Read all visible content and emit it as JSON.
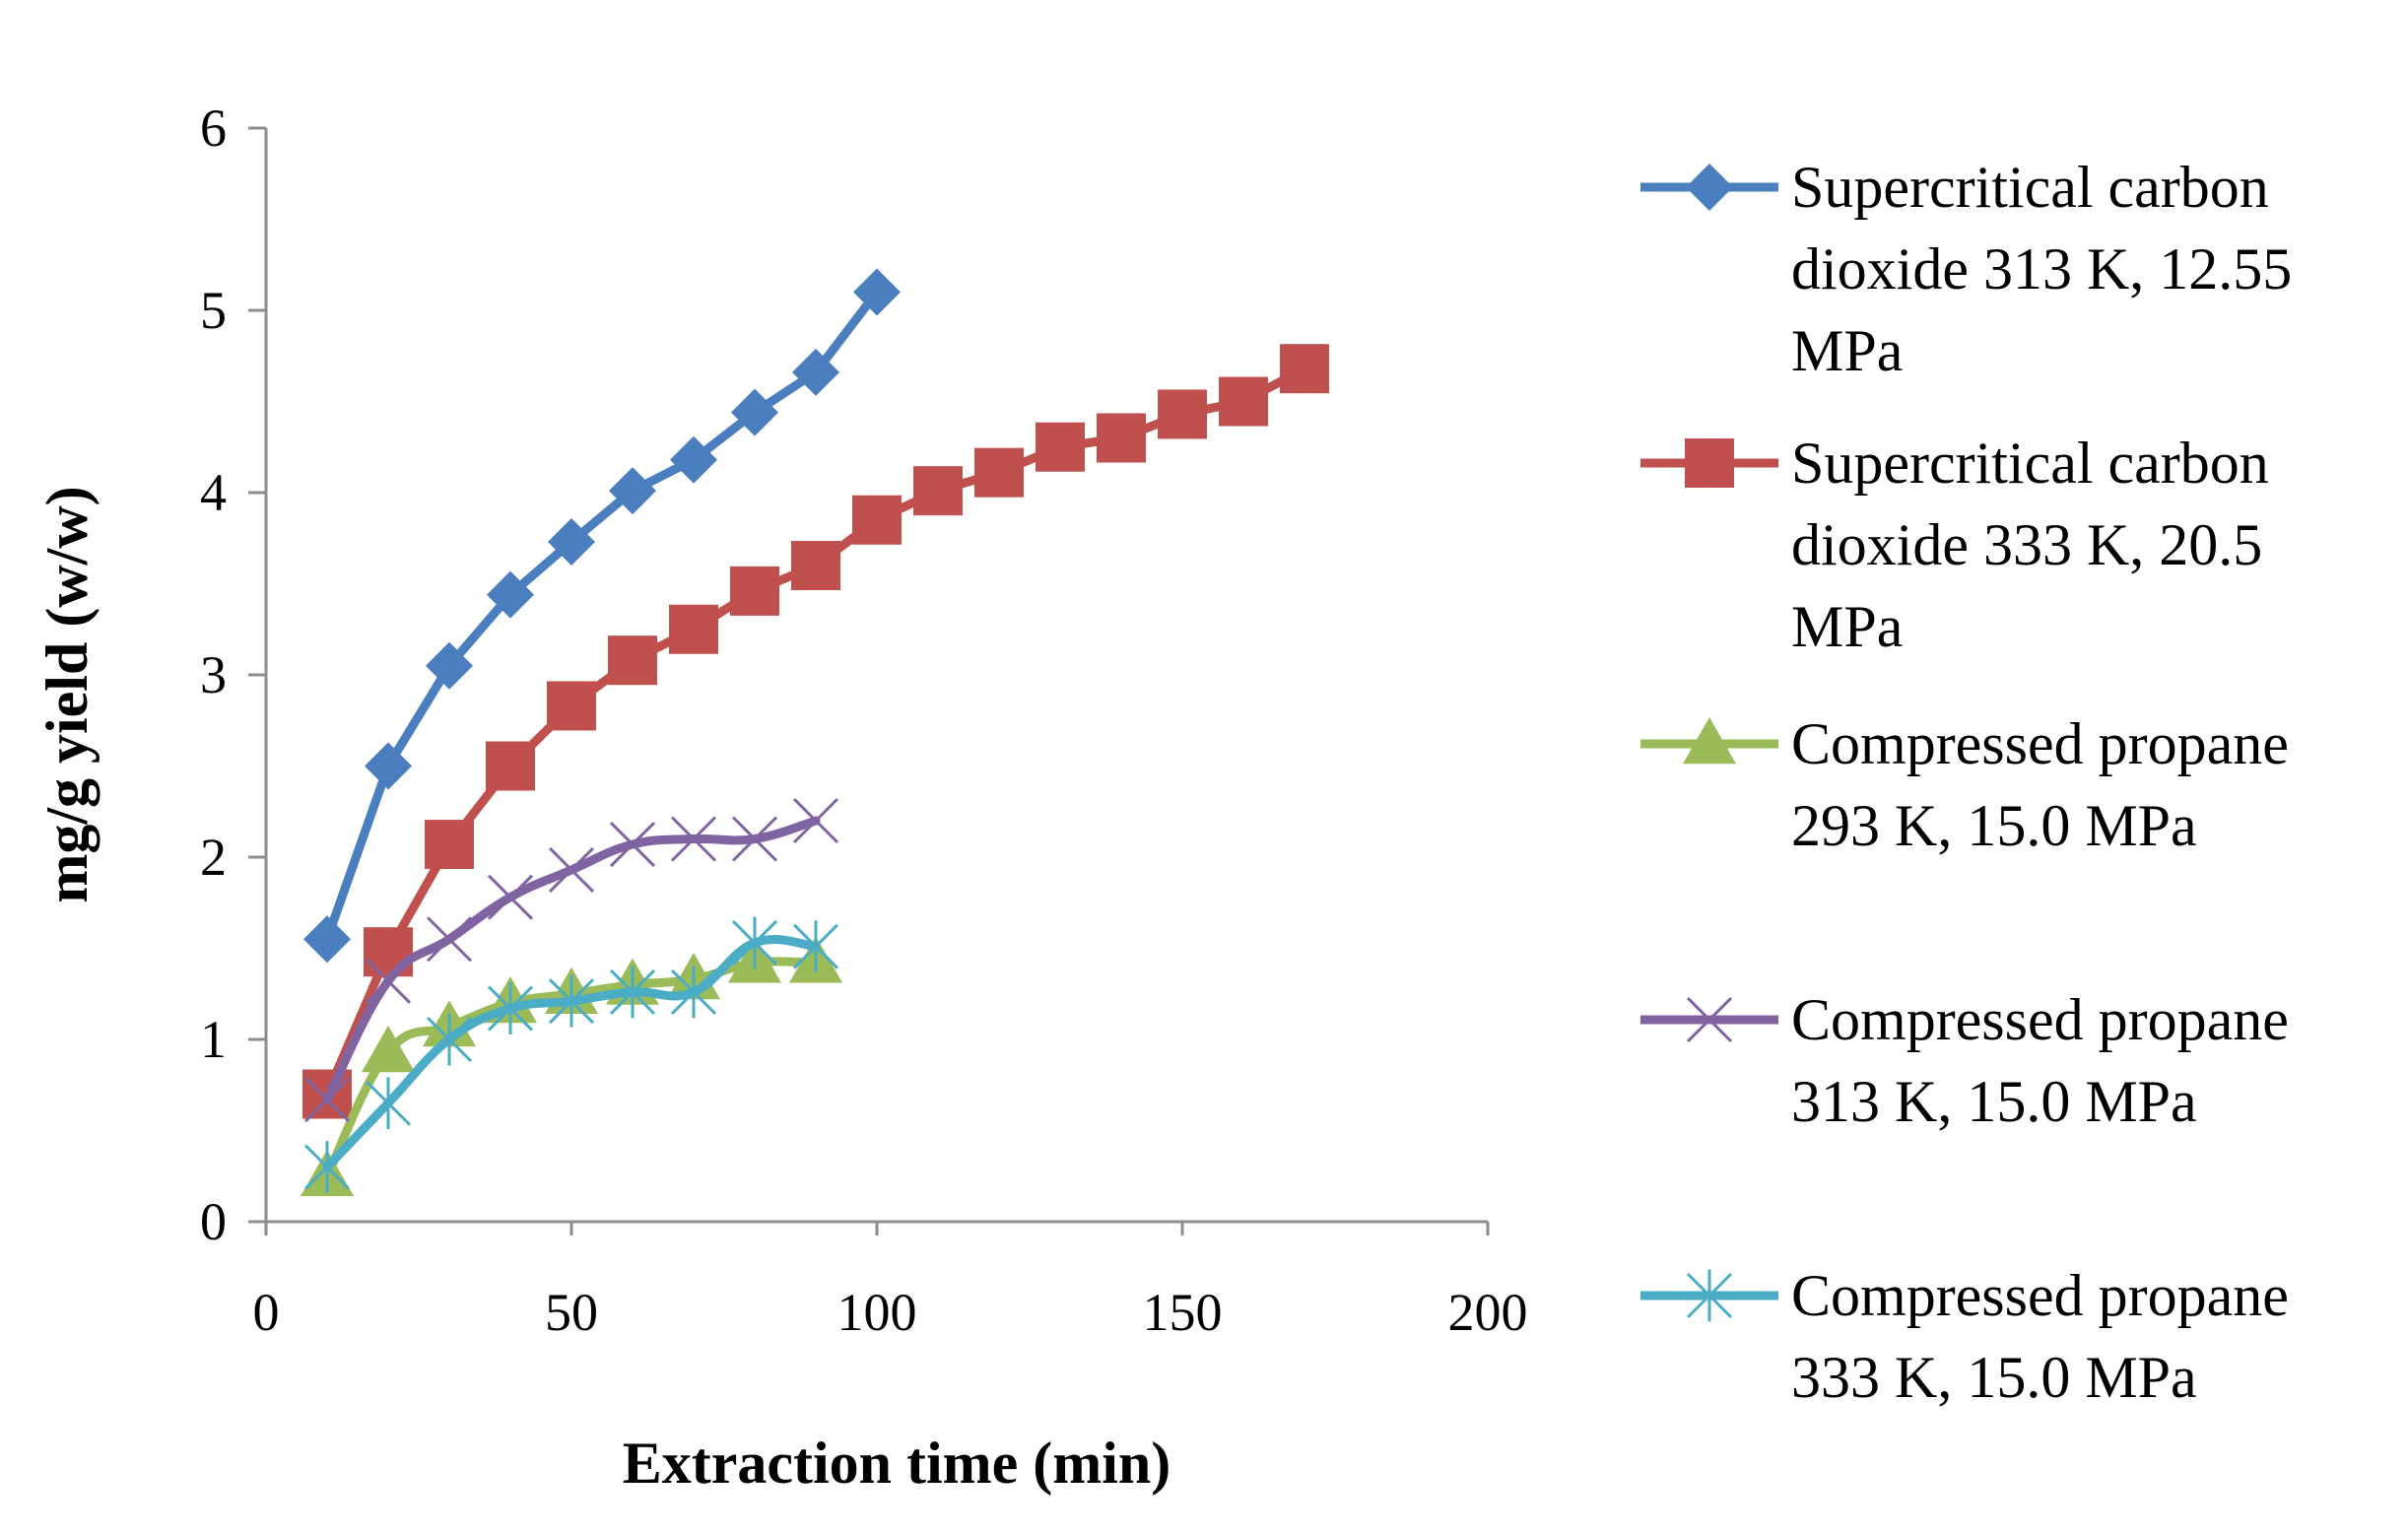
{
  "chart_data": {
    "type": "line",
    "xlabel": "Extraction time (min)",
    "ylabel": "mg/g yield  (w/w)",
    "xlim": [
      0,
      200
    ],
    "ylim": [
      0,
      6
    ],
    "xticks": [
      "0",
      "50",
      "100",
      "150",
      "200"
    ],
    "yticks": [
      "0",
      "1",
      "2",
      "3",
      "4",
      "5",
      "6"
    ],
    "grid": false,
    "legend_position": "right",
    "series": [
      {
        "name": "Supercritical carbon dioxide 313 K, 12.55 MPa",
        "legend_lines": [
          "Supercritical carbon",
          "dioxide 313 K, 12.55",
          "MPa"
        ],
        "color": "#4a7ebf",
        "marker": "diamond",
        "smooth": false,
        "x": [
          10,
          20,
          30,
          40,
          50,
          60,
          70,
          80,
          90,
          100
        ],
        "y": [
          1.55,
          2.5,
          3.05,
          3.44,
          3.73,
          4.01,
          4.18,
          4.44,
          4.66,
          5.1
        ]
      },
      {
        "name": "Supercritical carbon dioxide 333 K, 20.5 MPa",
        "legend_lines": [
          "Supercritical carbon",
          "dioxide 333 K, 20.5",
          "MPa"
        ],
        "color": "#c0504d",
        "marker": "square",
        "smooth": false,
        "x": [
          10,
          20,
          30,
          40,
          50,
          60,
          70,
          80,
          90,
          100,
          110,
          120,
          130,
          140,
          150,
          160,
          170
        ],
        "y": [
          0.7,
          1.48,
          2.07,
          2.5,
          2.83,
          3.08,
          3.25,
          3.46,
          3.6,
          3.85,
          4.01,
          4.11,
          4.25,
          4.3,
          4.43,
          4.5,
          4.68
        ]
      },
      {
        "name": "Compressed propane 293 K, 15.0 MPa",
        "legend_lines": [
          "Compressed propane",
          "293 K, 15.0 MPa"
        ],
        "color": "#9bbb59",
        "marker": "triangle",
        "smooth": true,
        "x": [
          10,
          20,
          30,
          40,
          50,
          60,
          70,
          80,
          90
        ],
        "y": [
          0.25,
          0.93,
          1.07,
          1.2,
          1.25,
          1.3,
          1.33,
          1.42,
          1.42
        ]
      },
      {
        "name": "Compressed propane 313 K, 15.0 MPa",
        "legend_lines": [
          "Compressed propane",
          "313 K, 15.0 MPa"
        ],
        "color": "#8064a2",
        "marker": "x",
        "smooth": true,
        "x": [
          10,
          20,
          30,
          40,
          50,
          60,
          70,
          80,
          90
        ],
        "y": [
          0.67,
          1.32,
          1.55,
          1.78,
          1.93,
          2.07,
          2.1,
          2.1,
          2.2
        ]
      },
      {
        "name": "Compressed propane 333 K, 15.0 MPa",
        "legend_lines": [
          "Compressed propane",
          "333 K, 15.0 MPa"
        ],
        "color": "#4bacc6",
        "marker": "asterisk",
        "smooth": true,
        "x": [
          10,
          20,
          30,
          40,
          50,
          60,
          70,
          80,
          90
        ],
        "y": [
          0.3,
          0.65,
          1.0,
          1.17,
          1.21,
          1.26,
          1.26,
          1.53,
          1.51
        ]
      }
    ]
  }
}
